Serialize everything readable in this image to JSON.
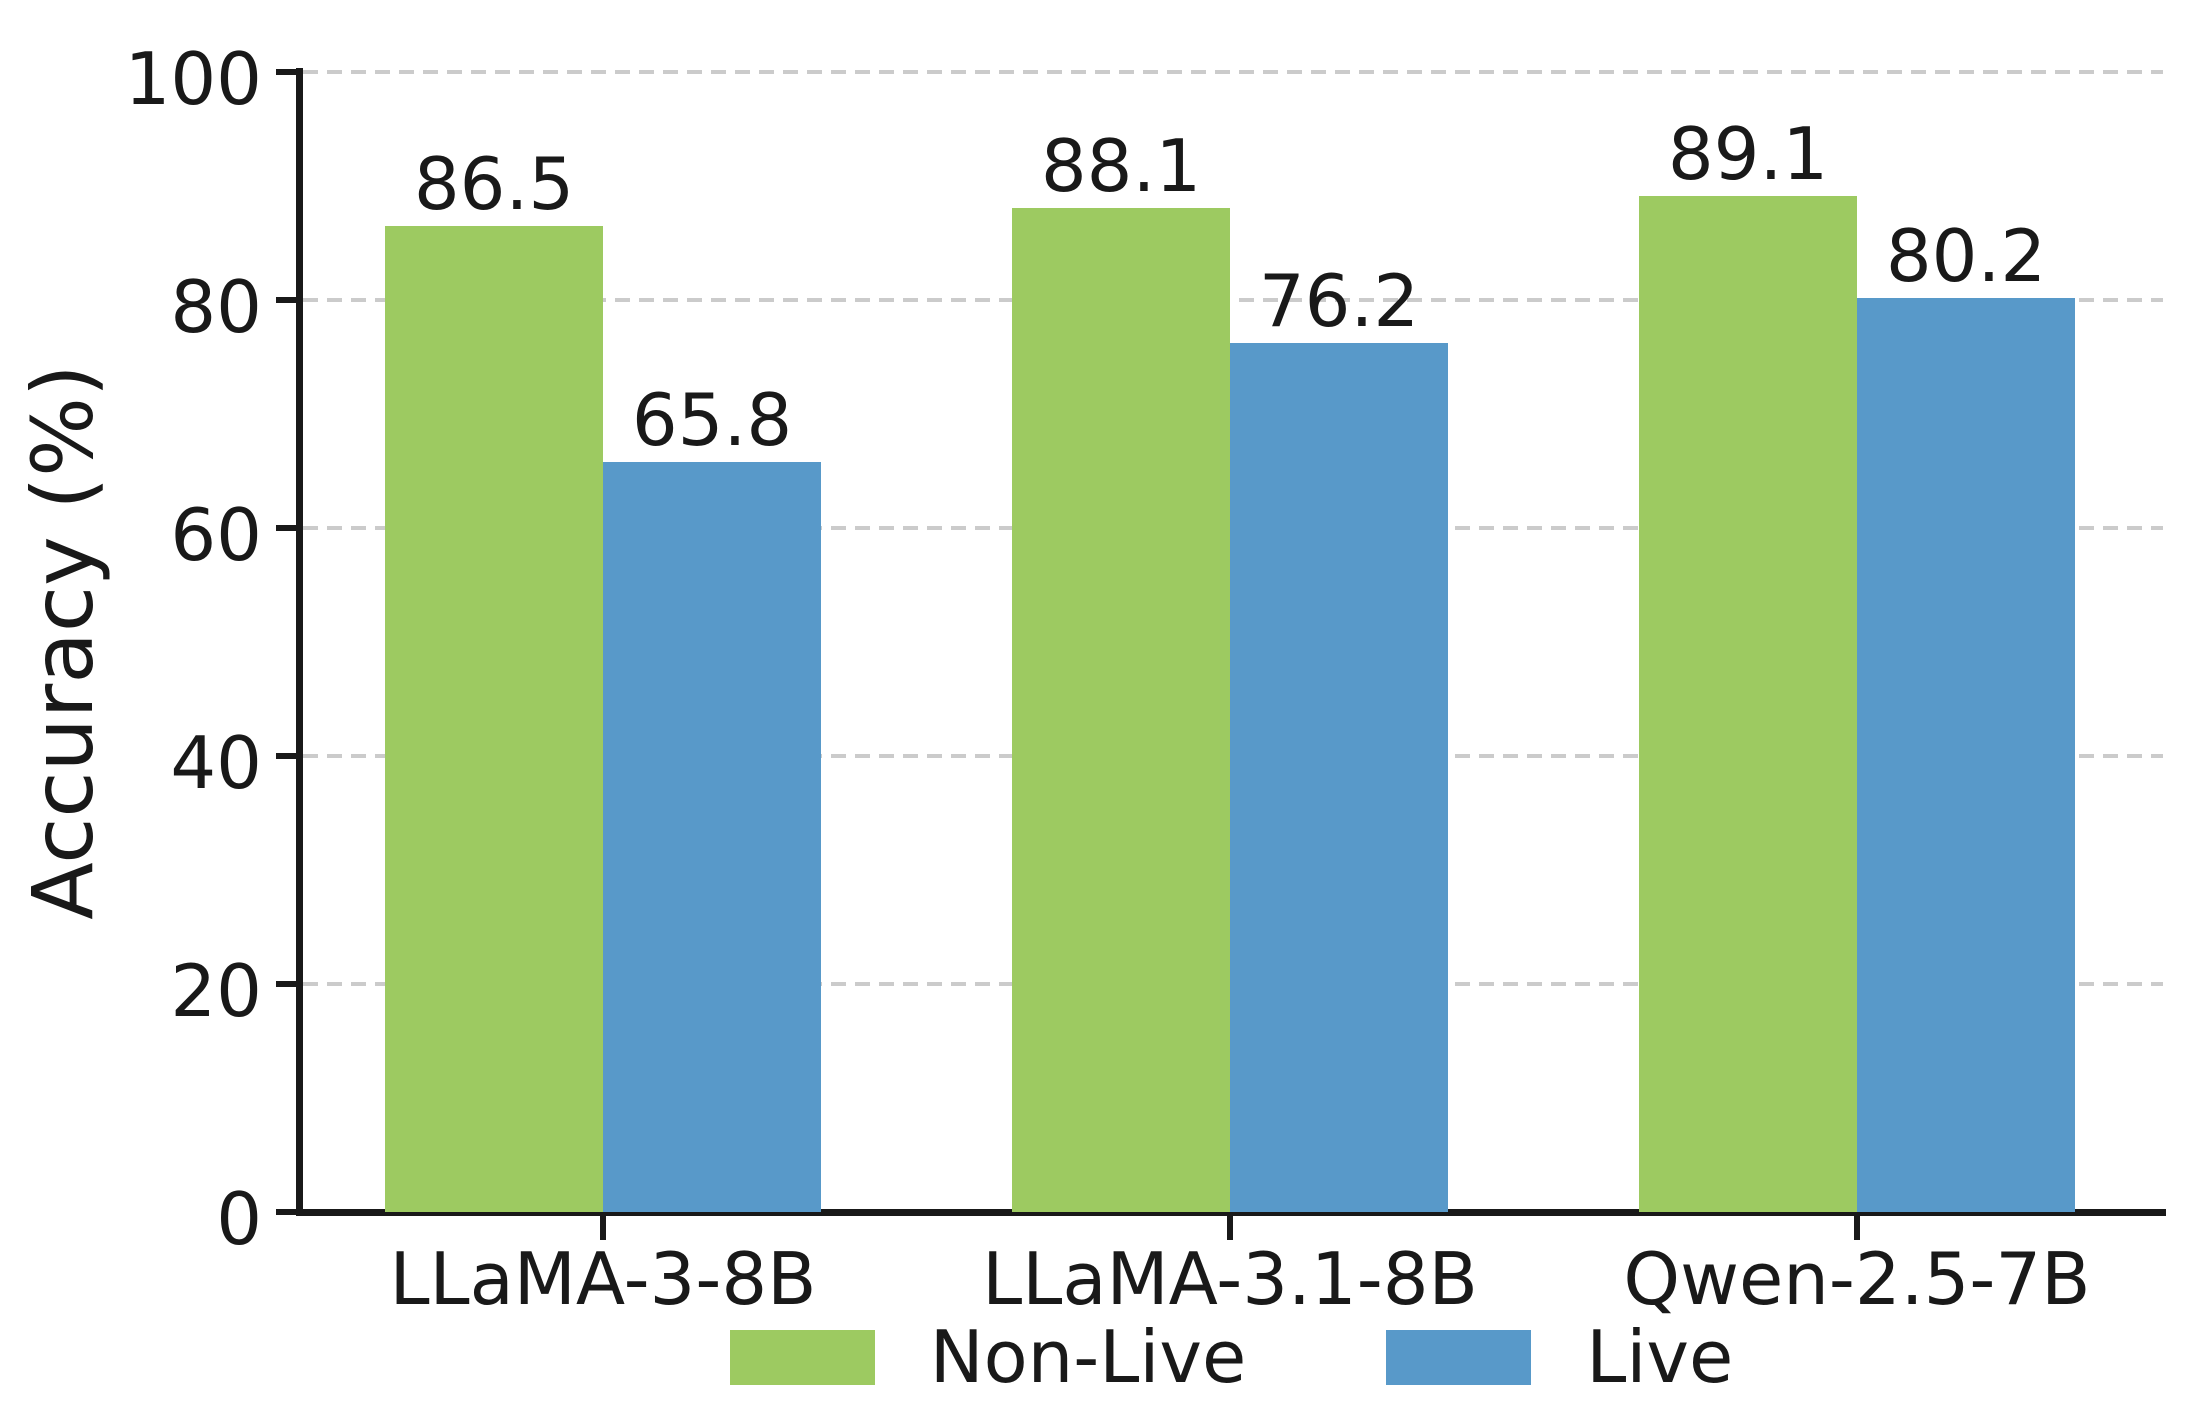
{
  "chart_data": {
    "type": "bar",
    "title": "",
    "categories": [
      "LLaMA-3-8B",
      "LLaMA-3.1-8B",
      "Qwen-2.5-7B"
    ],
    "series": [
      {
        "name": "Non-Live",
        "color": "#9DCA61",
        "values": [
          86.5,
          88.1,
          89.1
        ]
      },
      {
        "name": "Live",
        "color": "#5899C9",
        "values": [
          65.8,
          76.2,
          80.2
        ]
      }
    ],
    "value_labels": [
      [
        "86.5",
        "88.1",
        "89.1"
      ],
      [
        "65.8",
        "76.2",
        "80.2"
      ]
    ],
    "xlabel": "",
    "ylabel": "Accuracy (%)",
    "ylim": [
      0,
      100
    ],
    "yticks": [
      0,
      20,
      40,
      60,
      80,
      100
    ],
    "grid": "horizontal-dashed",
    "legend_position": "bottom-center"
  },
  "colors": {
    "background": "#ffffff",
    "axis_and_text": "#191919",
    "gridline": "#cbcbcb",
    "non_live_bar": "#9DCA61",
    "live_bar": "#5899C9"
  }
}
